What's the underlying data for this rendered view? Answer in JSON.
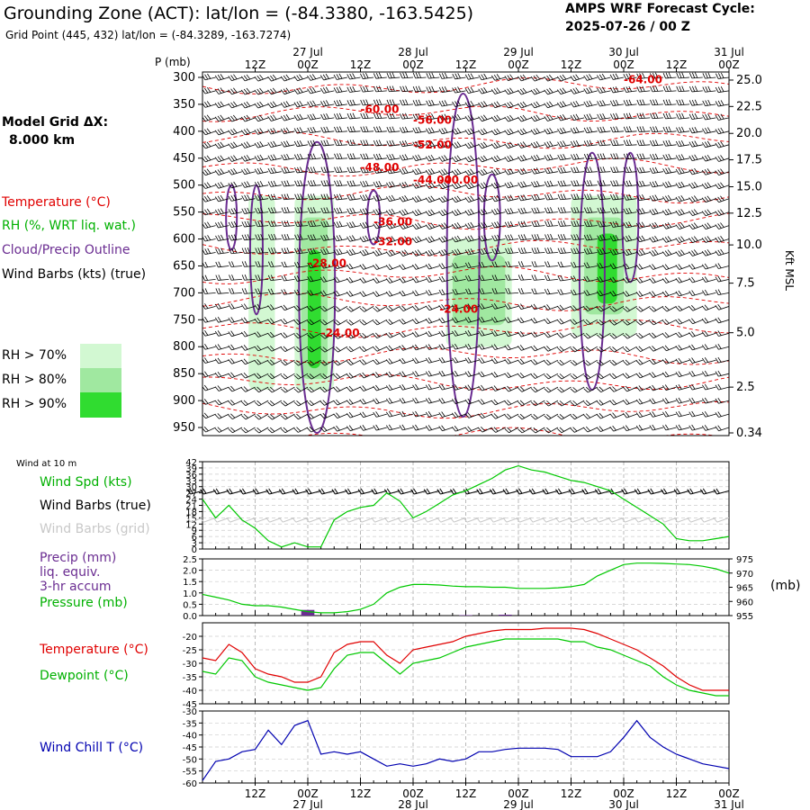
{
  "header": {
    "title": "Grounding Zone (ACT):  lat/lon = (-84.3380, -163.5425)",
    "subtitle": "Grid Point (445, 432) lat/lon = (-84.3289, -163.7274)",
    "cycle_line1": "AMPS WRF Forecast Cycle:",
    "cycle_line2": "2025-07-26 / 00  Z",
    "model_grid_label": "Model Grid ΔX:",
    "model_grid_value": "8.000 km"
  },
  "colors": {
    "temperature": "#e00000",
    "rh": "#00b000",
    "cloud": "#6a2c91",
    "wind": "#000000",
    "grid_wind": "#c8c8c8",
    "dewpoint": "#00c800",
    "windchill": "#0000b0",
    "rh70": "#d2f8d2",
    "rh80": "#a0e8a0",
    "rh90": "#30dc30"
  },
  "time_axis": {
    "hour_labels": [
      "12Z",
      "00Z",
      "12Z",
      "00Z",
      "12Z",
      "00Z",
      "12Z",
      "00Z",
      "12Z",
      "00Z"
    ],
    "hour_index": [
      4,
      8,
      12,
      16,
      20,
      24,
      28,
      32,
      36,
      40
    ],
    "day_labels": [
      "27 Jul",
      "28 Jul",
      "29 Jul",
      "30 Jul",
      "31 Jul"
    ],
    "day_index": [
      8,
      16,
      24,
      32,
      40
    ],
    "x_steps": 40
  },
  "legend": {
    "temperature": "Temperature (°C)",
    "rh": "RH (%, WRT liq. wat.)",
    "cloud": "Cloud/Precip Outline",
    "wind": "Wind Barbs (kts) (true)",
    "rh_levels": [
      "RH > 70%",
      "RH > 80%",
      "RH > 90%"
    ]
  },
  "cross_section": {
    "p_label": "P (mb)",
    "p_ticks": [
      "300",
      "350",
      "400",
      "450",
      "500",
      "550",
      "600",
      "650",
      "700",
      "750",
      "800",
      "850",
      "900",
      "950"
    ],
    "p_values": [
      300,
      350,
      400,
      450,
      500,
      550,
      600,
      650,
      700,
      750,
      800,
      850,
      900,
      950
    ],
    "kft_ticks": [
      "25.0",
      "22.5",
      "20.0",
      "17.5",
      "15.0",
      "12.5",
      "10.0",
      "7.5",
      "5.0",
      "2.5",
      "0.34"
    ],
    "kft_pressure": [
      305,
      354,
      404,
      453,
      503,
      552,
      611,
      682,
      774,
      875,
      960
    ],
    "kft_axis_label": "Kft MSL",
    "temp_labels": [
      "-64.00",
      "-60.00",
      "-56.00",
      "-52.00",
      "-48.00",
      "-44.00",
      "-40.00",
      "-36.00",
      "-32.00",
      "-28.00",
      "-24.00",
      "-24.00"
    ],
    "temp_label_pos": [
      [
        32,
        311
      ],
      [
        12,
        366
      ],
      [
        16,
        386
      ],
      [
        16,
        432
      ],
      [
        12,
        474
      ],
      [
        16,
        497
      ],
      [
        18,
        497
      ],
      [
        13,
        575
      ],
      [
        13,
        612
      ],
      [
        8,
        652
      ],
      [
        9,
        781
      ],
      [
        18,
        737
      ]
    ]
  },
  "surface_wind": {
    "title": "Wind at 10 m",
    "legend_spd": "Wind Spd (kts)",
    "legend_true": "Wind Barbs (true)",
    "legend_grid": "Wind Barbs (grid)",
    "y_ticks": [
      "0",
      "3",
      "6",
      "9",
      "12",
      "15",
      "18",
      "21",
      "24",
      "27",
      "30",
      "33",
      "36",
      "39",
      "42"
    ],
    "ylim": [
      0,
      42
    ]
  },
  "precip_panel": {
    "legend": [
      "Precip (mm)",
      "liq. equiv.",
      "3-hr accum",
      "Pressure (mb)"
    ],
    "left_ticks": [
      "0.0",
      "0.5",
      "1.0",
      "1.5",
      "2.0",
      "2.5"
    ],
    "left_lim": [
      0,
      2.5
    ],
    "right_ticks": [
      "955",
      "960",
      "965",
      "970",
      "975"
    ],
    "right_lim": [
      955,
      975
    ],
    "right_unit": "(mb)"
  },
  "temp_panel": {
    "legend_temp": "Temperature (°C)",
    "legend_dew": "Dewpoint (°C)",
    "y_ticks": [
      "-45",
      "-40",
      "-35",
      "-30",
      "-25",
      "-20"
    ],
    "ylim": [
      -45,
      -15
    ]
  },
  "chill_panel": {
    "legend": "Wind Chill T (°C)",
    "y_ticks": [
      "-60",
      "-55",
      "-50",
      "-45",
      "-40",
      "-35",
      "-30"
    ],
    "ylim": [
      -60,
      -30
    ]
  },
  "chart_data": [
    {
      "type": "line",
      "title": "Wind at 10 m",
      "x": [
        0,
        1,
        2,
        3,
        4,
        5,
        6,
        7,
        8,
        9,
        10,
        11,
        12,
        13,
        14,
        15,
        16,
        17,
        18,
        19,
        20,
        21,
        22,
        23,
        24,
        25,
        26,
        27,
        28,
        29,
        30,
        31,
        32,
        33,
        34,
        35,
        36,
        37,
        38,
        39,
        40
      ],
      "series": [
        {
          "name": "Wind Spd (kts)",
          "values": [
            24,
            15,
            21,
            14,
            10,
            4,
            1,
            3,
            1,
            1,
            14,
            18,
            20,
            21,
            27,
            23,
            15,
            18,
            22,
            26,
            28,
            31,
            34,
            38,
            40,
            38,
            37,
            35,
            33,
            32,
            30,
            28,
            24,
            20,
            16,
            12,
            5,
            4,
            4,
            5,
            6
          ]
        }
      ],
      "ylim": [
        0,
        42
      ]
    },
    {
      "type": "line",
      "title": "Precip / Pressure",
      "x": [
        0,
        1,
        2,
        3,
        4,
        5,
        6,
        7,
        8,
        9,
        10,
        11,
        12,
        13,
        14,
        15,
        16,
        17,
        18,
        19,
        20,
        21,
        22,
        23,
        24,
        25,
        26,
        27,
        28,
        29,
        30,
        31,
        32,
        33,
        34,
        35,
        36,
        37,
        38,
        39,
        40
      ],
      "series": [
        {
          "name": "Pressure (mb)",
          "values": [
            962.5,
            961.5,
            960.5,
            959,
            958.5,
            958.5,
            958,
            957.2,
            956.4,
            956,
            956,
            956.4,
            957.2,
            959,
            963,
            965,
            966,
            966,
            965.8,
            965.4,
            965.2,
            965.2,
            965,
            965,
            964.6,
            964.6,
            964.6,
            964.8,
            965.2,
            966,
            969,
            971,
            973,
            973.5,
            973.5,
            973.4,
            973.2,
            973,
            972.4,
            971.5,
            970
          ]
        },
        {
          "name": "Precip (mm)",
          "values": [
            0,
            0,
            0,
            0,
            0,
            0,
            0,
            0,
            0.25,
            0,
            0,
            0,
            0,
            0,
            0,
            0,
            0,
            0,
            0,
            0,
            0.02,
            0,
            0,
            0.04,
            0,
            0,
            0,
            0,
            0,
            0,
            0,
            0,
            0,
            0,
            0,
            0,
            0,
            0,
            0,
            0,
            0
          ]
        }
      ],
      "ylim": [
        0,
        2.5
      ]
    },
    {
      "type": "line",
      "title": "Temperature / Dewpoint",
      "x": [
        0,
        1,
        2,
        3,
        4,
        5,
        6,
        7,
        8,
        9,
        10,
        11,
        12,
        13,
        14,
        15,
        16,
        17,
        18,
        19,
        20,
        21,
        22,
        23,
        24,
        25,
        26,
        27,
        28,
        29,
        30,
        31,
        32,
        33,
        34,
        35,
        36,
        37,
        38,
        39,
        40
      ],
      "series": [
        {
          "name": "Temperature (°C)",
          "values": [
            -28,
            -29,
            -23,
            -26,
            -32,
            -34,
            -35,
            -37,
            -37,
            -35,
            -26,
            -23,
            -22,
            -22,
            -27,
            -30,
            -25,
            -24,
            -23,
            -22,
            -20,
            -19,
            -18,
            -17.5,
            -17.5,
            -17.5,
            -17,
            -17,
            -17,
            -17.5,
            -19,
            -21,
            -23,
            -25,
            -28,
            -31,
            -35,
            -38,
            -40,
            -40,
            -40
          ]
        },
        {
          "name": "Dewpoint (°C)",
          "values": [
            -33,
            -34,
            -28,
            -29,
            -35,
            -37,
            -38,
            -39,
            -40,
            -39,
            -32,
            -27,
            -26,
            -26,
            -30,
            -34,
            -30,
            -29,
            -28,
            -26,
            -24,
            -23,
            -22,
            -21,
            -21,
            -21,
            -21,
            -21,
            -22,
            -22,
            -24,
            -25,
            -27,
            -29,
            -31,
            -35,
            -38,
            -40,
            -41,
            -42,
            -42
          ]
        }
      ],
      "ylim": [
        -45,
        -15
      ]
    },
    {
      "type": "line",
      "title": "Wind Chill T",
      "x": [
        0,
        1,
        2,
        3,
        4,
        5,
        6,
        7,
        8,
        9,
        10,
        11,
        12,
        13,
        14,
        15,
        16,
        17,
        18,
        19,
        20,
        21,
        22,
        23,
        24,
        25,
        26,
        27,
        28,
        29,
        30,
        31,
        32,
        33,
        34,
        35,
        36,
        37,
        38,
        39,
        40
      ],
      "series": [
        {
          "name": "Wind Chill T (°C)",
          "values": [
            -59,
            -51,
            -50,
            -47,
            -46,
            -38,
            -44,
            -36,
            -34,
            -48,
            -47,
            -48,
            -47,
            -50,
            -53,
            -52,
            -53,
            -52,
            -50,
            -51,
            -50,
            -47,
            -47,
            -46,
            -45.5,
            -45.5,
            -45.5,
            -46,
            -49,
            -49,
            -49,
            -47,
            -41,
            -34,
            -41,
            -45,
            -48,
            -50,
            -52,
            -53,
            -54
          ]
        }
      ],
      "ylim": [
        -60,
        -30
      ]
    }
  ]
}
